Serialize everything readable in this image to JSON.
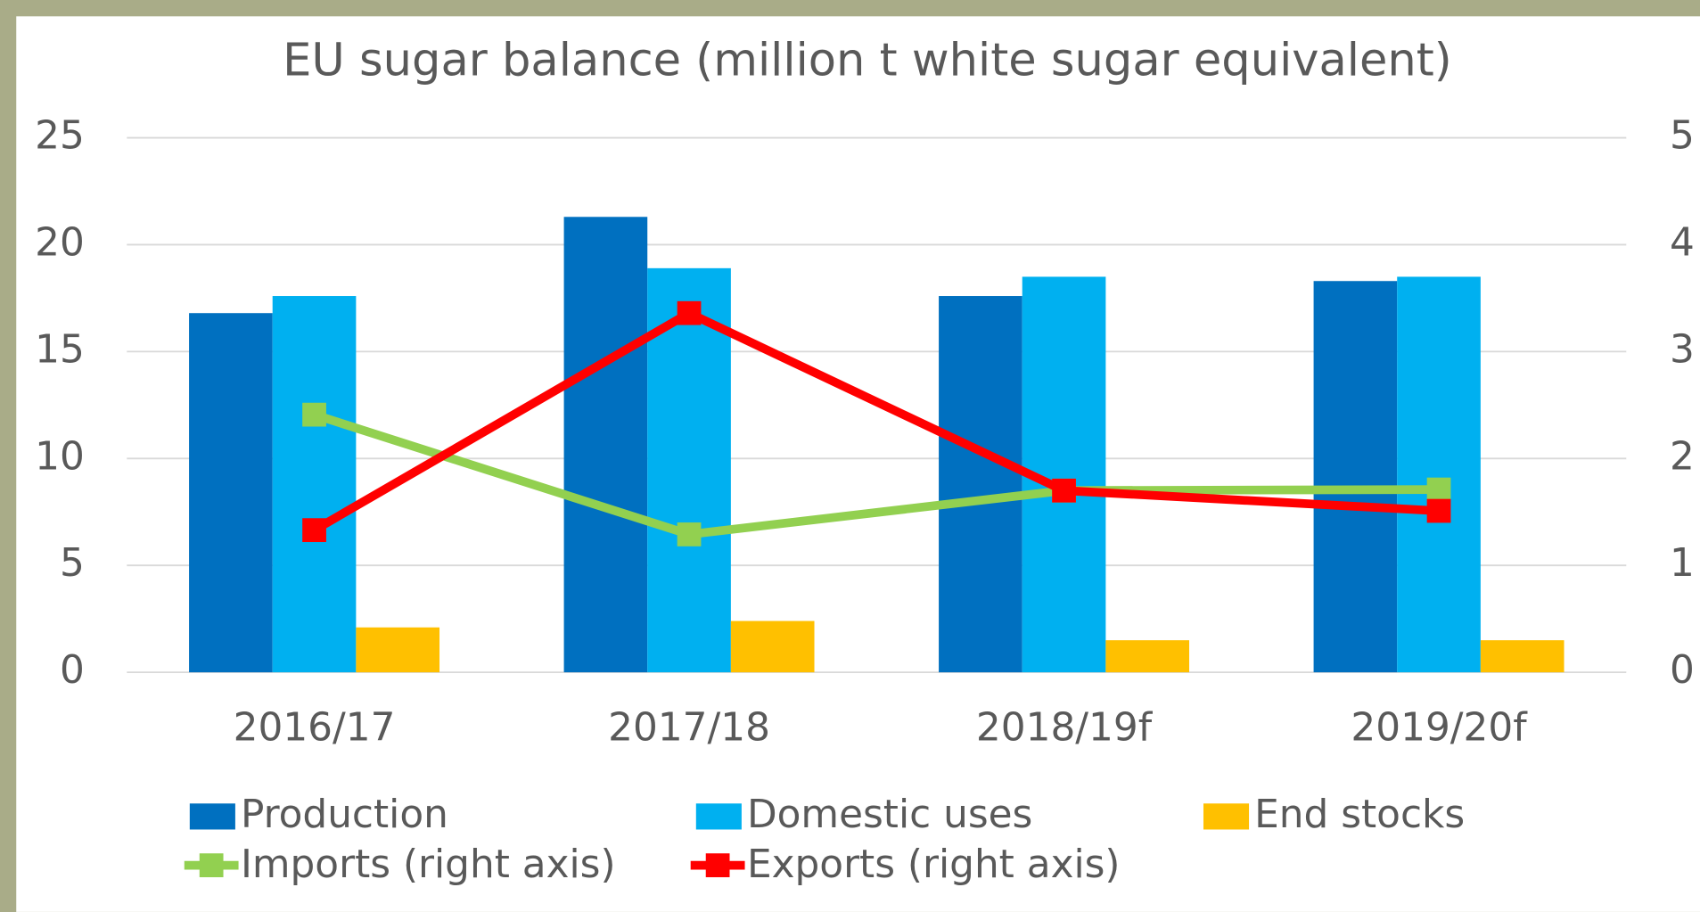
{
  "chart_data": {
    "type": "bar",
    "title": "EU sugar balance (million t white sugar equivalent)",
    "categories": [
      "2016/17",
      "2017/18",
      "2018/19f",
      "2019/20f"
    ],
    "series": [
      {
        "name": "Production",
        "color": "#0070c0",
        "values": [
          16.8,
          21.3,
          17.6,
          18.3
        ]
      },
      {
        "name": "Domestic uses",
        "color": "#00b0f0",
        "values": [
          17.6,
          18.9,
          18.5,
          18.5
        ]
      },
      {
        "name": "End stocks",
        "color": "#ffc000",
        "values": [
          2.1,
          2.4,
          1.5,
          1.5
        ]
      },
      {
        "name": "Imports (right axis)",
        "color": "#92d050",
        "type": "line",
        "axis": "y2",
        "values": [
          2.41,
          1.29,
          1.7,
          1.71
        ]
      },
      {
        "name": "Exports (right axis)",
        "color": "#ff0000",
        "type": "line",
        "axis": "y2",
        "values": [
          1.33,
          3.36,
          1.7,
          1.51
        ]
      }
    ],
    "ylim": [
      0,
      25
    ],
    "yticks": [
      0,
      5,
      10,
      15,
      20,
      25
    ],
    "y2lim": [
      0,
      5
    ],
    "y2ticks": [
      0,
      1,
      2,
      3,
      4,
      5
    ],
    "grid": true
  }
}
